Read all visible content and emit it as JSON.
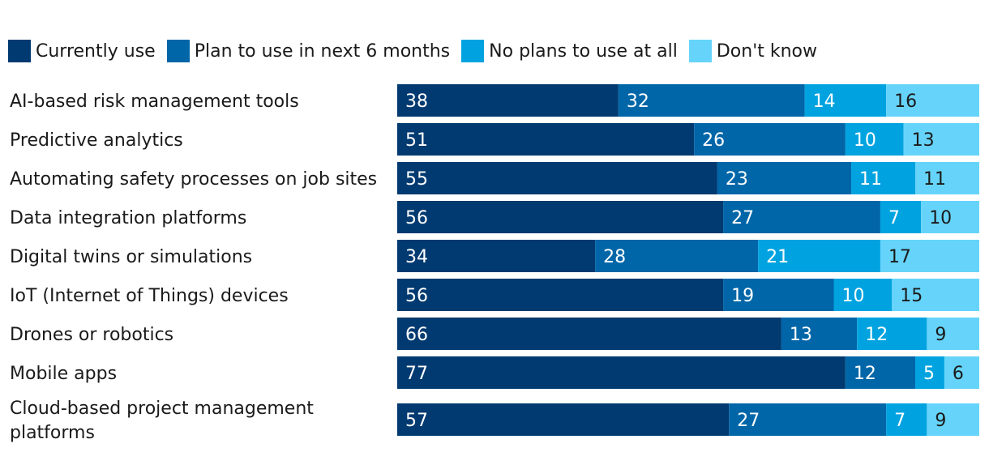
{
  "chart_data": {
    "type": "bar",
    "orientation": "horizontal",
    "stacked": true,
    "legend_position": "top-left",
    "xlim": [
      0,
      100
    ],
    "categories": [
      "AI-based risk management tools",
      "Predictive analytics",
      "Automating safety processes on job sites",
      "Data integration platforms",
      "Digital twins or simulations",
      "IoT (Internet of Things) devices",
      "Drones or robotics",
      "Mobile apps",
      "Cloud-based project management platforms"
    ],
    "category_lines": [
      [
        "AI-based risk management tools"
      ],
      [
        "Predictive analytics"
      ],
      [
        "Automating safety processes on job sites"
      ],
      [
        "Data integration platforms"
      ],
      [
        "Digital twins or simulations"
      ],
      [
        "IoT (Internet of Things) devices"
      ],
      [
        "Drones or robotics"
      ],
      [
        "Mobile apps"
      ],
      [
        "Cloud-based project management",
        "platforms"
      ]
    ],
    "series": [
      {
        "name": "Currently use",
        "color": "#003a70",
        "label_color": "#ffffff",
        "values": [
          38,
          51,
          55,
          56,
          34,
          56,
          66,
          77,
          57
        ]
      },
      {
        "name": "Plan to use in next 6 months",
        "color": "#0066a8",
        "label_color": "#ffffff",
        "values": [
          32,
          26,
          23,
          27,
          28,
          19,
          13,
          12,
          27
        ]
      },
      {
        "name": "No plans to use at all",
        "color": "#00a3e0",
        "label_color": "#ffffff",
        "values": [
          14,
          10,
          11,
          7,
          21,
          10,
          12,
          5,
          7
        ]
      },
      {
        "name": "Don't know",
        "color": "#66d4fa",
        "label_color": "#1a1a1a",
        "values": [
          16,
          13,
          11,
          10,
          17,
          15,
          9,
          6,
          9
        ]
      }
    ]
  }
}
